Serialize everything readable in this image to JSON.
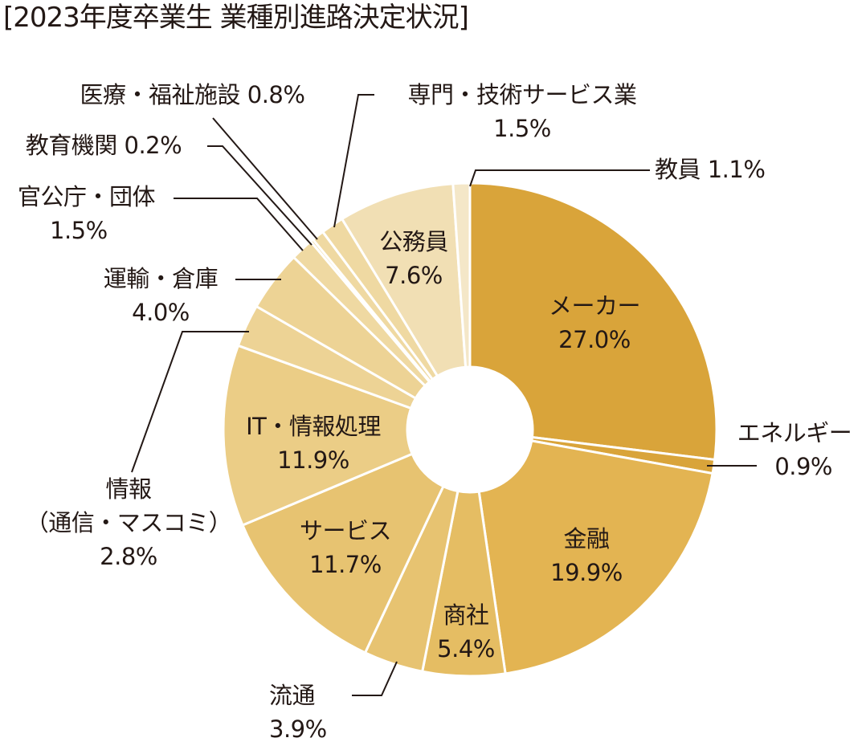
{
  "chart_data": {
    "type": "pie",
    "subtype": "donut",
    "title": "[2023年度卒業生 業種別進路決定状況]",
    "unit": "%",
    "start_angle": "12 o'clock, clockwise",
    "categories": [
      "メーカー",
      "エネルギー",
      "金融",
      "商社",
      "流通",
      "サービス",
      "IT・情報処理",
      "情報（通信・マスコミ）",
      "運輸・倉庫",
      "官公庁・団体",
      "教育機関",
      "医療・福祉施設",
      "専門・技術サービス業",
      "公務員",
      "教員"
    ],
    "values": [
      27.0,
      0.9,
      19.9,
      5.4,
      3.9,
      11.7,
      11.9,
      2.8,
      4.0,
      1.5,
      0.2,
      0.8,
      1.5,
      7.6,
      1.1
    ],
    "value_labels": [
      "27.0%",
      "0.9%",
      "19.9%",
      "5.4%",
      "3.9%",
      "11.7%",
      "11.9%",
      "2.8%",
      "4.0%",
      "1.5%",
      "0.2%",
      "0.8%",
      "1.5%",
      "7.6%",
      "1.1%"
    ],
    "colors": [
      "#D9A43A",
      "#D9A43A",
      "#E3B452",
      "#E5BD63",
      "#E7C371",
      "#E7C371",
      "#EBCD86",
      "#EDD395",
      "#EDD395",
      "#EFD9A2",
      "#EFD9A2",
      "#EFD9A2",
      "#EFD9A2",
      "#F1DFB4",
      "#F4E7C8"
    ],
    "legend": "none (direct labels)"
  },
  "labels": {
    "maker": {
      "name": "メーカー",
      "value": "27.0%"
    },
    "energy": {
      "name": "エネルギー",
      "value": "0.9%"
    },
    "finance": {
      "name": "金融",
      "value": "19.9%"
    },
    "trading": {
      "name": "商社",
      "value": "5.4%"
    },
    "distribution": {
      "name": "流通",
      "value": "3.9%"
    },
    "service": {
      "name": "サービス",
      "value": "11.7%"
    },
    "it": {
      "name": "IT・情報処理",
      "value": "11.9%"
    },
    "media": {
      "name": "情報",
      "sub": "（通信・マスコミ）",
      "value": "2.8%"
    },
    "transport": {
      "name": "運輸・倉庫",
      "value": "4.0%"
    },
    "government": {
      "name": "官公庁・団体",
      "value": "1.5%"
    },
    "education": {
      "name": "教育機関 0.2%"
    },
    "medical": {
      "name": "医療・福祉施設 0.8%"
    },
    "professional": {
      "name": "専門・技術サービス業",
      "value": "1.5%"
    },
    "civil_servant": {
      "name": "公務員",
      "value": "7.6%"
    },
    "teacher": {
      "name": "教員 1.1%"
    }
  }
}
